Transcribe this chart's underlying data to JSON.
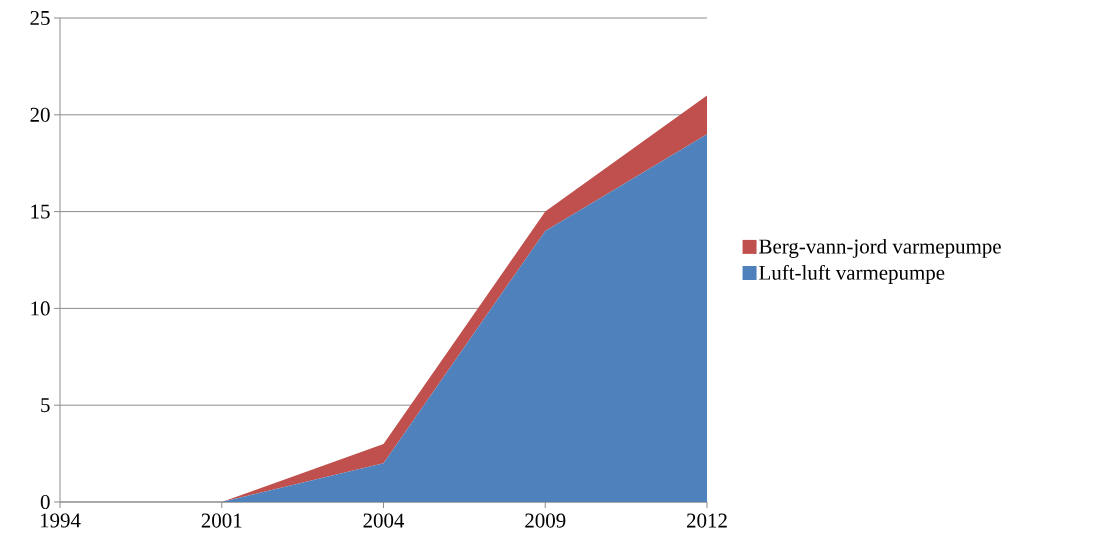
{
  "chart_data": {
    "type": "area",
    "stacked": true,
    "categories": [
      "1994",
      "2001",
      "2004",
      "2009",
      "2012"
    ],
    "series": [
      {
        "name": "Luft-luft varmepumpe",
        "color": "#4f81bd",
        "values": [
          0,
          0,
          2,
          14,
          19
        ]
      },
      {
        "name": "Berg-vann-jord varmepumpe",
        "color": "#c0504d",
        "values": [
          0,
          0,
          1,
          1,
          2
        ]
      }
    ],
    "ylim": [
      0,
      25
    ],
    "yticks": [
      0,
      5,
      10,
      15,
      20,
      25
    ],
    "grid": "y",
    "legend": "right"
  }
}
